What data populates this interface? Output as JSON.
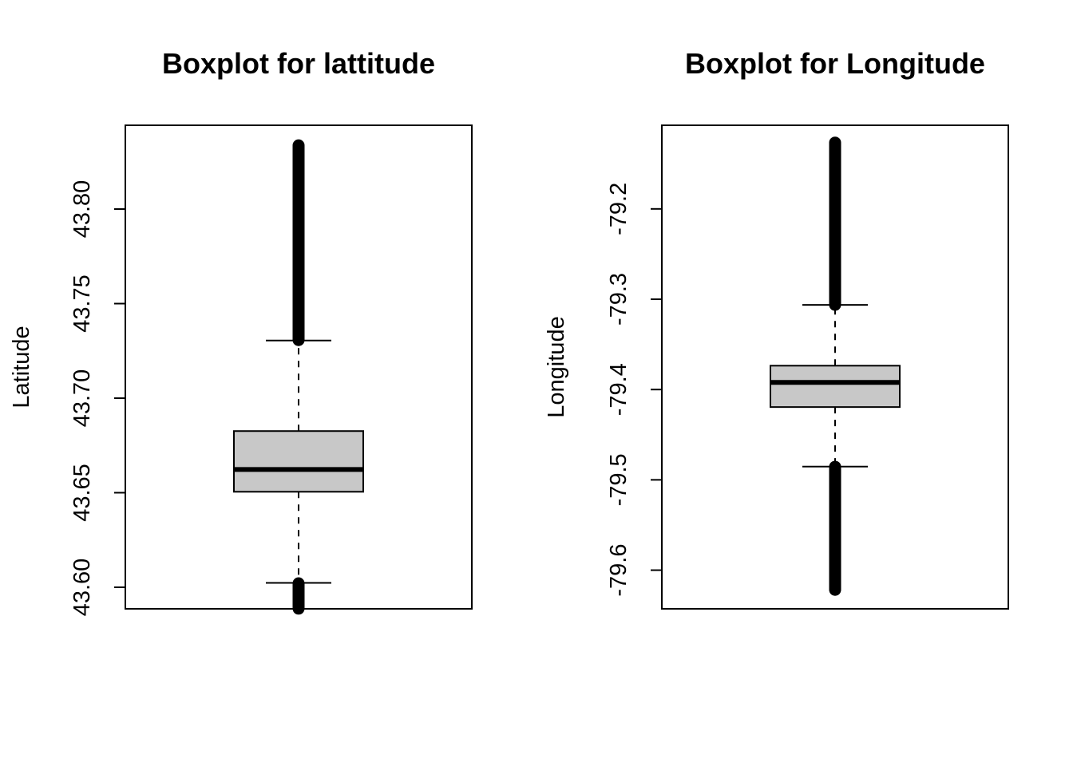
{
  "chart_data": [
    {
      "type": "boxplot",
      "title": "Boxplot for lattitude",
      "xlabel": "",
      "ylabel": "Latitude",
      "ylim": [
        43.5886,
        43.8443
      ],
      "yticks": [
        43.6,
        43.65,
        43.7,
        43.75,
        43.8
      ],
      "ytick_labels": [
        "43.60",
        "43.65",
        "43.70",
        "43.75",
        "43.80"
      ],
      "box": {
        "whisker_low": 43.6023,
        "q1": 43.6505,
        "median": 43.6623,
        "q3": 43.6826,
        "whisker_high": 43.7305
      },
      "outliers_high": {
        "from": 43.7307,
        "to": 43.8337
      },
      "outliers_low": {
        "from": 43.5887,
        "to": 43.6021
      },
      "box_color": "#c8c8c8",
      "grid": false
    },
    {
      "type": "boxplot",
      "title": "Boxplot for Longitude",
      "xlabel": "",
      "ylabel": "Longitude",
      "ylim": [
        -79.6428,
        -79.1074
      ],
      "yticks": [
        -79.6,
        -79.5,
        -79.4,
        -79.3,
        -79.2
      ],
      "ytick_labels": [
        "-79.6",
        "-79.5",
        "-79.4",
        "-79.3",
        "-79.2"
      ],
      "box": {
        "whisker_low": -79.4853,
        "q1": -79.4194,
        "median": -79.3921,
        "q3": -79.3736,
        "whisker_high": -79.3063
      },
      "outliers_high": {
        "from": -79.3062,
        "to": -79.1266
      },
      "outliers_low": {
        "from": -79.4855,
        "to": -79.6218
      },
      "box_color": "#c8c8c8",
      "grid": false
    }
  ]
}
